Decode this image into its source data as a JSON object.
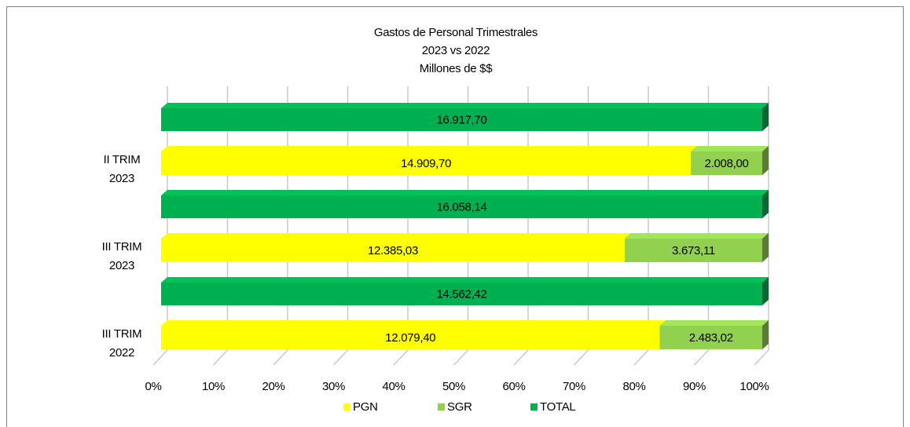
{
  "chart_data": {
    "type": "stacked_bar_100",
    "title": [
      "Gastos de Personal Trimestrales",
      "2023 vs 2022",
      "Millones de $$"
    ],
    "categories": [
      "II TRIM 2023",
      "III TRIM 2023",
      "III TRIM 2022"
    ],
    "series": [
      {
        "name": "PGN",
        "color": "#ffff00",
        "values": [
          14909.7,
          12385.03,
          12079.4
        ],
        "value_labels": [
          "14.909,70",
          "12.385,03",
          "12.079,40"
        ]
      },
      {
        "name": "SGR",
        "color": "#92d050",
        "values": [
          2008.0,
          3673.11,
          2483.02
        ],
        "value_labels": [
          "2.008,00",
          "3.673,11",
          "2.483,02"
        ]
      },
      {
        "name": "TOTAL",
        "color": "#00b050",
        "values": [
          16917.7,
          16058.14,
          14562.42
        ],
        "value_labels": [
          "16.917,70",
          "16.058,14",
          "14.562,42"
        ]
      }
    ],
    "xlim": [
      0,
      100
    ],
    "xticks": [
      {
        "value": 0,
        "label": "0%"
      },
      {
        "value": 10,
        "label": "10%"
      },
      {
        "value": 20,
        "label": "20%"
      },
      {
        "value": 30,
        "label": "30%"
      },
      {
        "value": 40,
        "label": "40%"
      },
      {
        "value": 50,
        "label": "50%"
      },
      {
        "value": 60,
        "label": "60%"
      },
      {
        "value": 70,
        "label": "70%"
      },
      {
        "value": 80,
        "label": "80%"
      },
      {
        "value": 90,
        "label": "90%"
      },
      {
        "value": 100,
        "label": "100%"
      }
    ],
    "grid": true,
    "legend": "bottom"
  }
}
